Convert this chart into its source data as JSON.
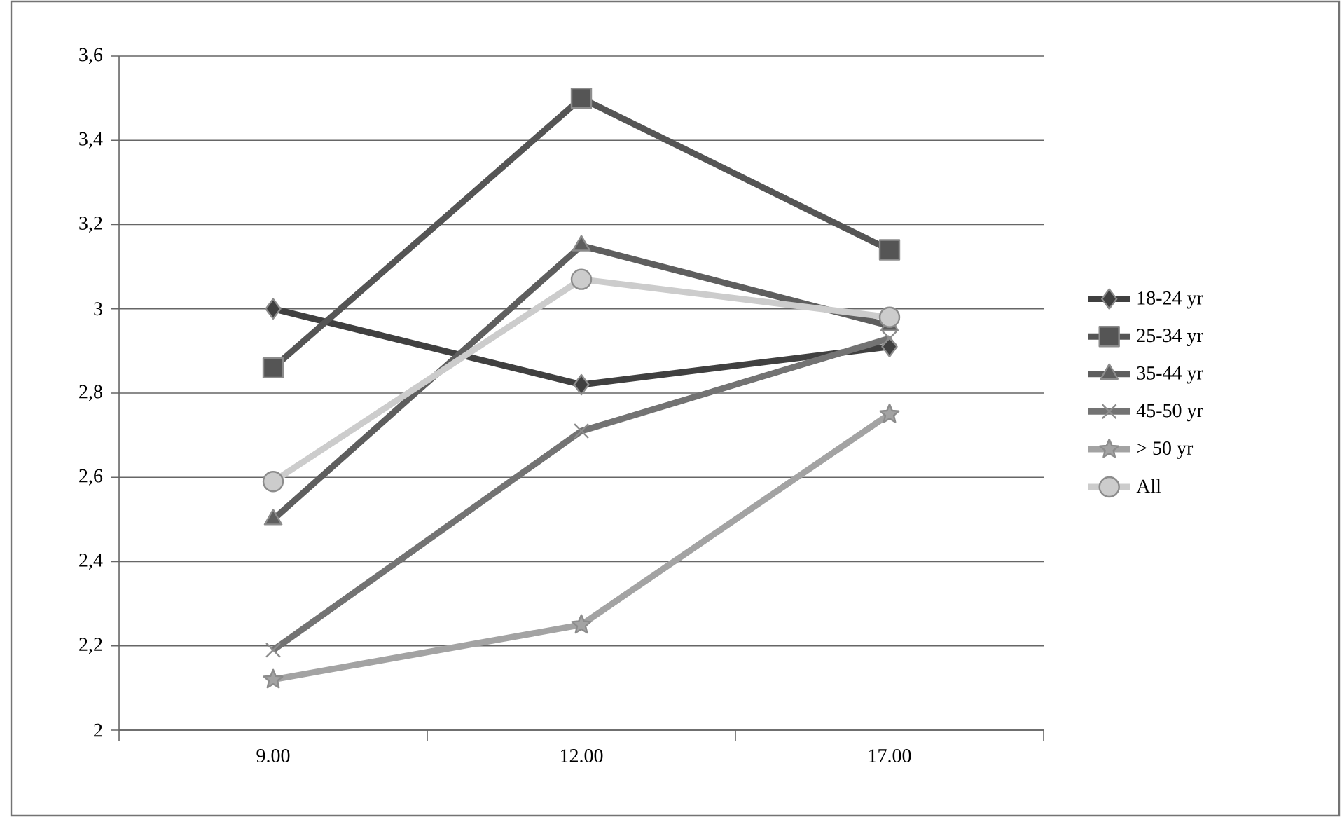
{
  "chart_data": {
    "type": "line",
    "categories": [
      "9.00",
      "12.00",
      "17.00"
    ],
    "series": [
      {
        "name": "18-24 yr",
        "color": "#404040",
        "marker": "diamond",
        "values": [
          3.0,
          2.82,
          2.91
        ]
      },
      {
        "name": "25-34 yr",
        "color": "#555555",
        "marker": "square",
        "values": [
          2.86,
          3.5,
          3.14
        ]
      },
      {
        "name": "35-44 yr",
        "color": "#5e5e5e",
        "marker": "triangle",
        "values": [
          2.5,
          3.15,
          2.96
        ]
      },
      {
        "name": "45-50 yr",
        "color": "#737373",
        "marker": "cross",
        "values": [
          2.19,
          2.71,
          2.93
        ]
      },
      {
        "name": "> 50 yr",
        "color": "#a3a3a3",
        "marker": "star",
        "values": [
          2.12,
          2.25,
          2.75
        ]
      },
      {
        "name": "All",
        "color": "#cccccc",
        "marker": "circle",
        "values": [
          2.59,
          3.07,
          2.98
        ]
      }
    ],
    "ylim": [
      2,
      3.6
    ],
    "yticks": [
      2,
      {
        "value": 2.2,
        "label": "2,2"
      },
      {
        "value": 2.4,
        "label": "2,4"
      },
      {
        "value": 2.6,
        "label": "2,6"
      },
      {
        "value": 2.8,
        "label": "2,8"
      },
      3,
      {
        "value": 3.2,
        "label": "3,2"
      },
      {
        "value": 3.4,
        "label": "3,4"
      },
      {
        "value": 3.6,
        "label": "3,6"
      }
    ],
    "grid": "y",
    "legend": "right"
  }
}
